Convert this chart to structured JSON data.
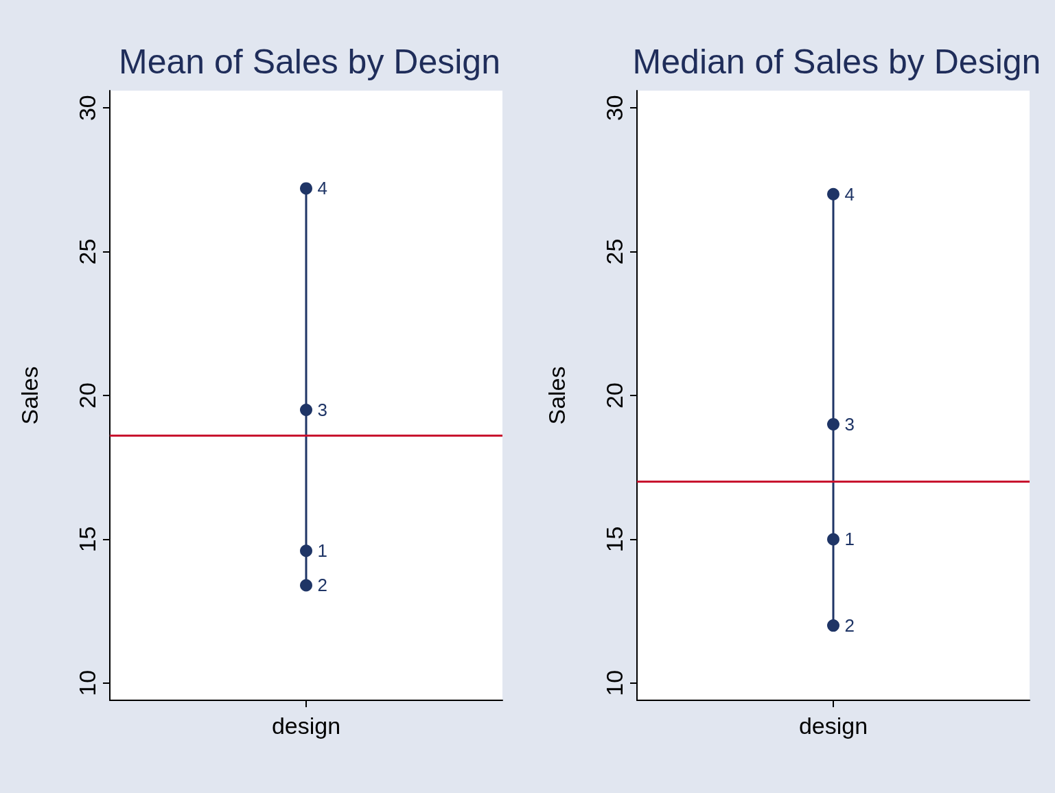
{
  "chart_data": [
    {
      "type": "line",
      "title": "Mean of Sales by Design",
      "ylabel": "Sales",
      "categories": [
        "design"
      ],
      "series": [
        {
          "color": "#1f3566",
          "x": [
            "design",
            "design",
            "design",
            "design"
          ],
          "values": [
            14.6,
            13.4,
            19.5,
            27.2
          ]
        }
      ],
      "annotations": [
        {
          "text": "1",
          "x": "design",
          "y": 14.6
        },
        {
          "text": "2",
          "x": "design",
          "y": 13.4
        },
        {
          "text": "3",
          "x": "design",
          "y": 19.5
        },
        {
          "text": "4",
          "x": "design",
          "y": 27.2
        }
      ],
      "ylim": [
        9.4,
        30.6
      ],
      "yticks": [
        10,
        15,
        20,
        25,
        30
      ],
      "grid": false,
      "marker": "circle",
      "line_style": "solid",
      "ref_lines": [
        {
          "axis": "y",
          "value": 18.6,
          "color": "#c8102e"
        }
      ]
    },
    {
      "type": "line",
      "title": "Median of Sales by Design",
      "ylabel": "Sales",
      "categories": [
        "design"
      ],
      "series": [
        {
          "color": "#1f3566",
          "x": [
            "design",
            "design",
            "design",
            "design"
          ],
          "values": [
            15,
            12,
            19,
            27
          ]
        }
      ],
      "annotations": [
        {
          "text": "1",
          "x": "design",
          "y": 15
        },
        {
          "text": "2",
          "x": "design",
          "y": 12
        },
        {
          "text": "3",
          "x": "design",
          "y": 19
        },
        {
          "text": "4",
          "x": "design",
          "y": 27
        }
      ],
      "ylim": [
        9.4,
        30.6
      ],
      "yticks": [
        10,
        15,
        20,
        25,
        30
      ],
      "grid": false,
      "marker": "circle",
      "line_style": "solid",
      "ref_lines": [
        {
          "axis": "y",
          "value": 17,
          "color": "#c8102e"
        }
      ]
    }
  ]
}
